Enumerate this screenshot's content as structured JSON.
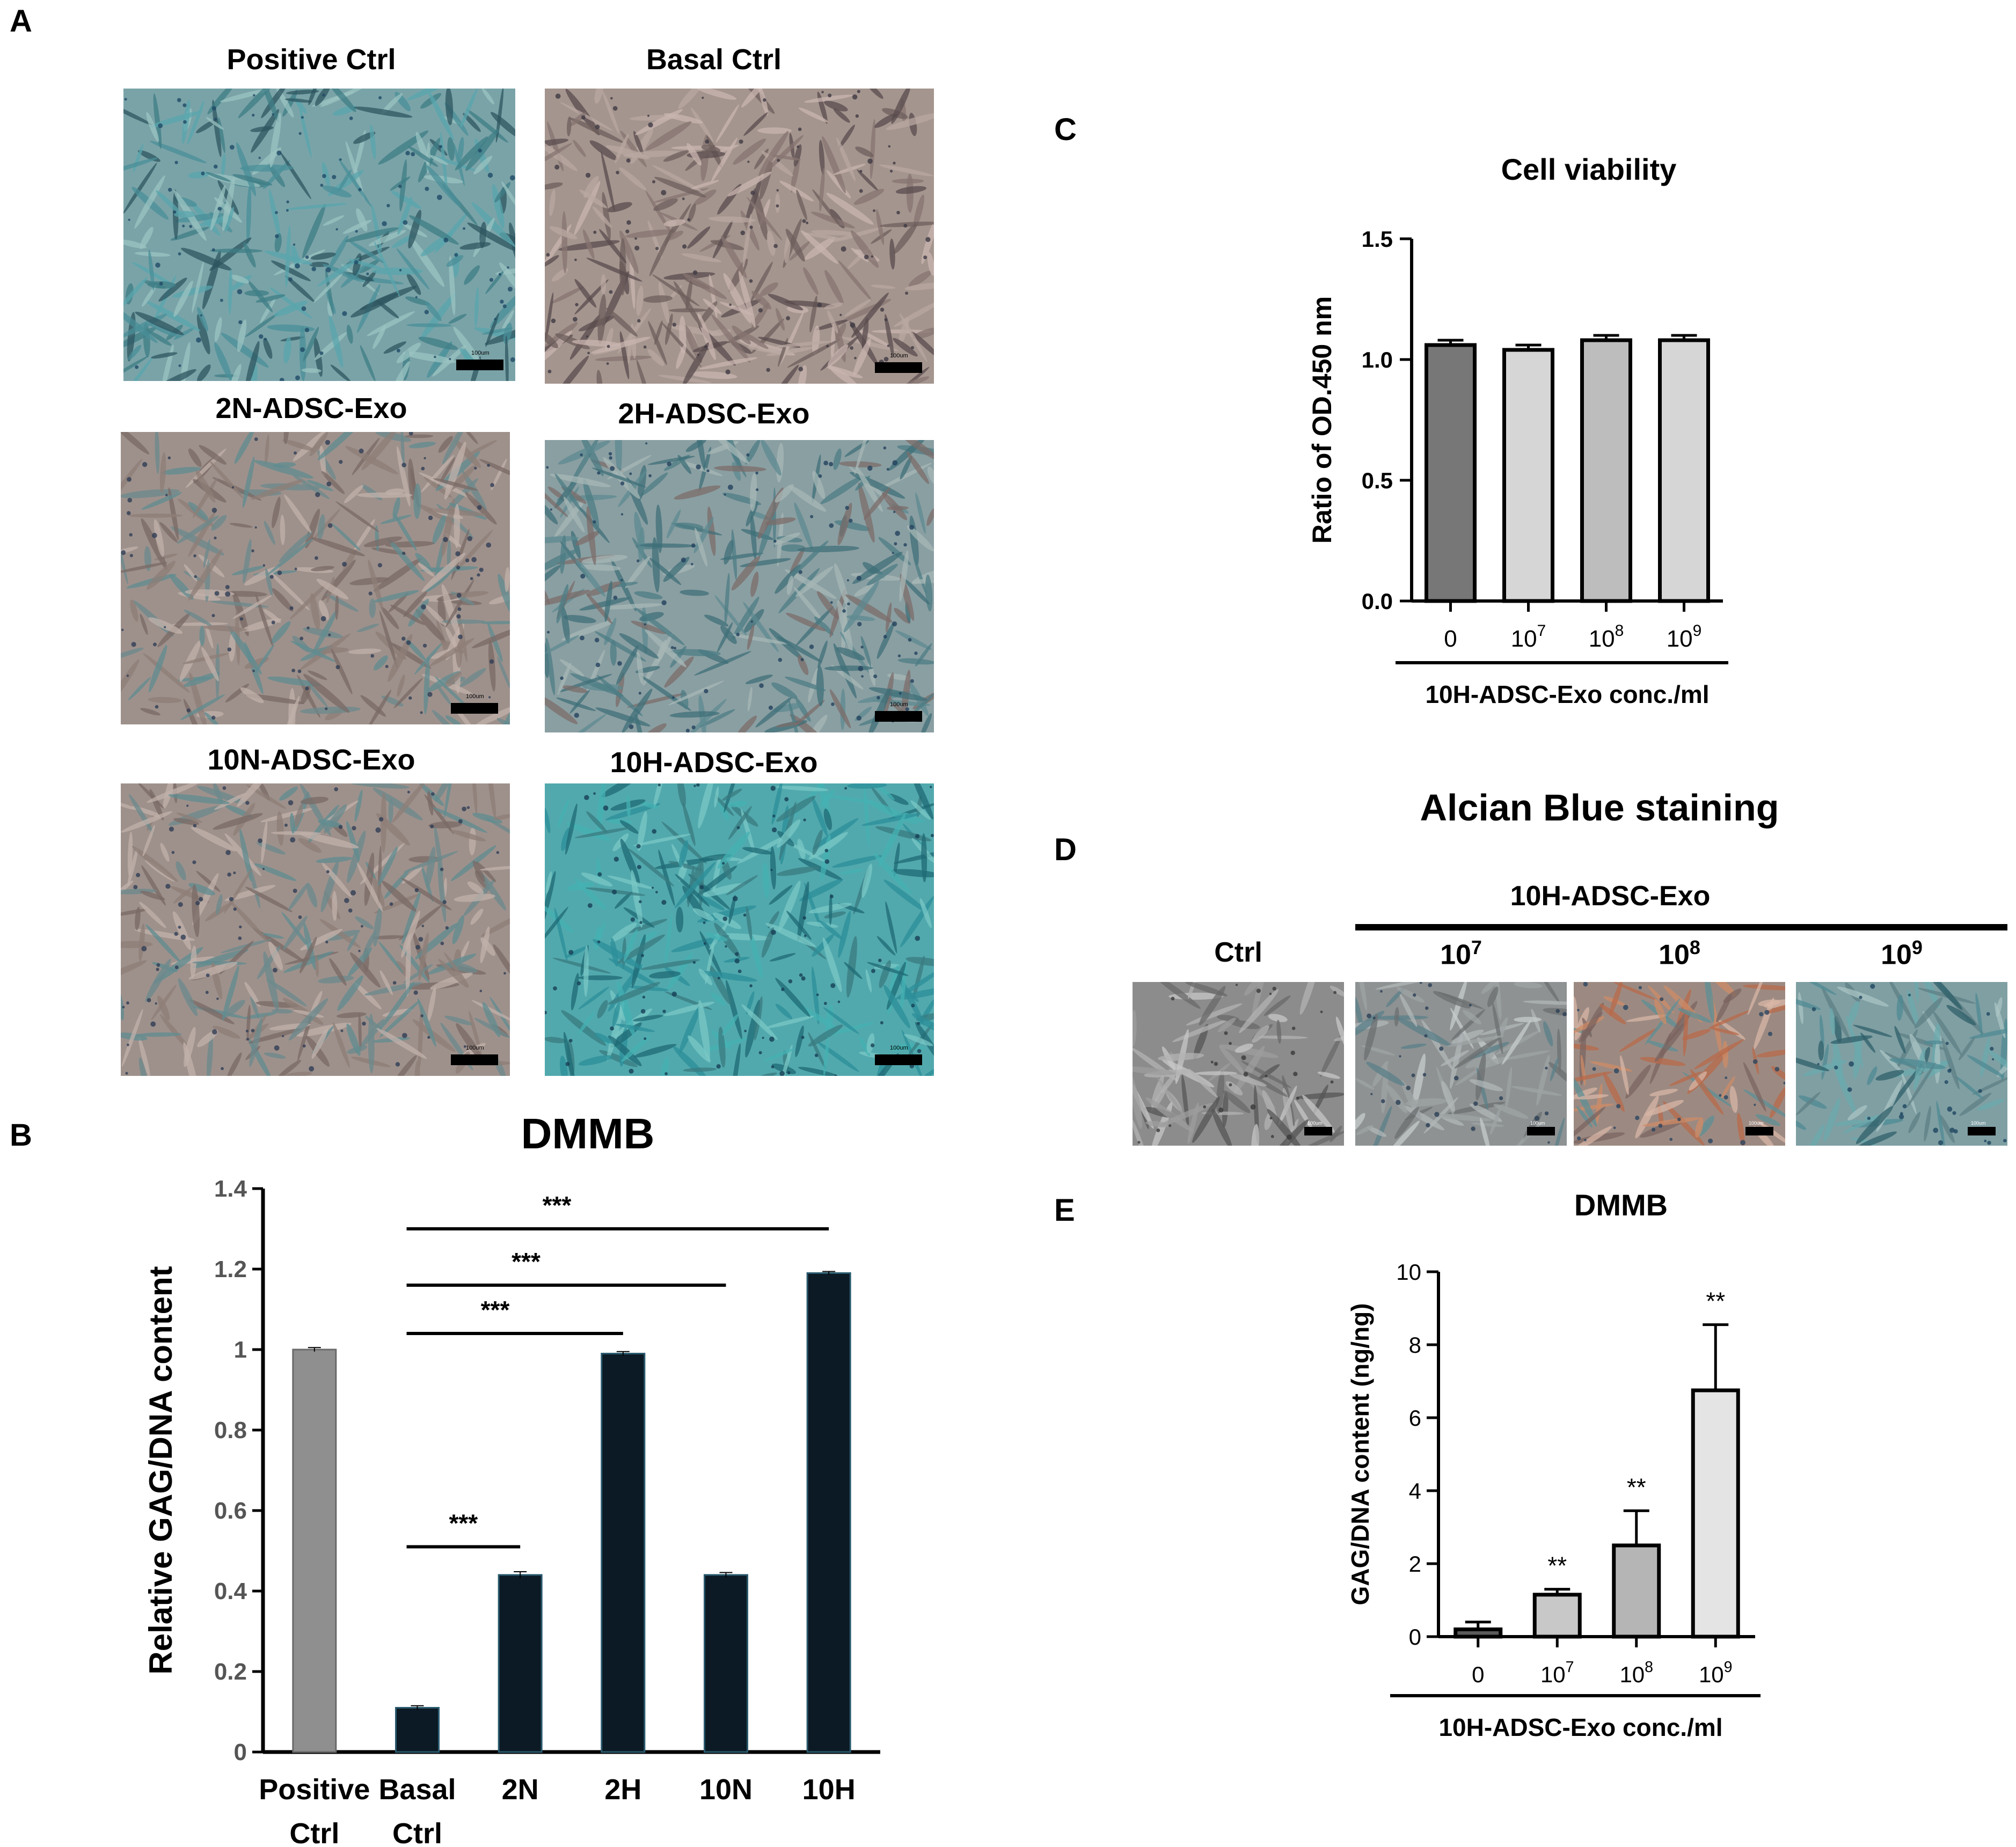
{
  "panel_letters": {
    "a": "A",
    "b": "B",
    "c": "C",
    "d": "D",
    "e": "E"
  },
  "panel_a": {
    "images": [
      {
        "title": "Positive Ctrl",
        "scale": "100um",
        "stain": "blue-strong"
      },
      {
        "title": "Basal Ctrl",
        "scale": "100um",
        "stain": "brown"
      },
      {
        "title": "2N-ADSC-Exo",
        "scale": "100um",
        "stain": "brown-mixed"
      },
      {
        "title": "2H-ADSC-Exo",
        "scale": "100um",
        "stain": "blue-mixed"
      },
      {
        "title": "10N-ADSC-Exo",
        "scale": "100um",
        "stain": "brown-mixed"
      },
      {
        "title": "10H-ADSC-Exo",
        "scale": "100um",
        "stain": "blue-very-strong"
      }
    ]
  },
  "panel_d": {
    "title": "Alcian Blue staining",
    "group_label": "10H-ADSC-Exo",
    "columns": [
      {
        "label": "Ctrl",
        "base": "",
        "exp": "",
        "scale": "100um",
        "stain": "gray"
      },
      {
        "label": "",
        "base": "10",
        "exp": "7",
        "scale": "100um",
        "stain": "gray-blue"
      },
      {
        "label": "",
        "base": "10",
        "exp": "8",
        "scale": "100um",
        "stain": "orange-blue"
      },
      {
        "label": "",
        "base": "10",
        "exp": "9",
        "scale": "100um",
        "stain": "blue"
      }
    ]
  },
  "chart_data": [
    {
      "id": "B",
      "type": "bar",
      "title": "DMMB",
      "ylabel": "Relative GAG/DNA content",
      "xlabel": "",
      "categories": [
        [
          "Positive",
          "Ctrl"
        ],
        [
          "Basal",
          "Ctrl"
        ],
        [
          "2N"
        ],
        [
          "2H"
        ],
        [
          "10N"
        ],
        [
          "10H"
        ]
      ],
      "values": [
        1.0,
        0.11,
        0.44,
        0.99,
        0.44,
        1.19
      ],
      "errors": [
        0.005,
        0.005,
        0.008,
        0.005,
        0.006,
        0.004
      ],
      "colors": [
        "#8f8f8f",
        "#0b1a24",
        "#0b1a24",
        "#0b1a24",
        "#0b1a24",
        "#0b1a24"
      ],
      "ylim": [
        0,
        1.4
      ],
      "yticks": [
        "0",
        "0.2",
        "0.4",
        "0.6",
        "0.8",
        "1",
        "1.2",
        "1.4"
      ],
      "significance": [
        {
          "from": 1,
          "to": 2,
          "label": "***"
        },
        {
          "from": 1,
          "to": 3,
          "label": "***"
        },
        {
          "from": 1,
          "to": 4,
          "label": "***"
        },
        {
          "from": 1,
          "to": 5,
          "label": "***"
        }
      ],
      "grid": false
    },
    {
      "id": "C",
      "type": "bar",
      "title": "Cell viability",
      "ylabel": "Ratio of OD.450 nm",
      "xlabel": "10H-ADSC-Exo conc./ml",
      "categories": [
        {
          "base": "0",
          "exp": ""
        },
        {
          "base": "10",
          "exp": "7"
        },
        {
          "base": "10",
          "exp": "8"
        },
        {
          "base": "10",
          "exp": "9"
        }
      ],
      "values": [
        1.06,
        1.04,
        1.08,
        1.08
      ],
      "errors": [
        0.02,
        0.02,
        0.02,
        0.02
      ],
      "colors": [
        "#777777",
        "#d6d6d6",
        "#bdbdbd",
        "#d6d6d6"
      ],
      "ylim": [
        0,
        1.5
      ],
      "yticks": [
        "0.0",
        "0.5",
        "1.0",
        "1.5"
      ],
      "grid": false
    },
    {
      "id": "E",
      "type": "bar",
      "title": "DMMB",
      "ylabel": "GAG/DNA content (ng/ng)",
      "xlabel": "10H-ADSC-Exo conc./ml",
      "categories": [
        {
          "base": "0",
          "exp": ""
        },
        {
          "base": "10",
          "exp": "7"
        },
        {
          "base": "10",
          "exp": "8"
        },
        {
          "base": "10",
          "exp": "9"
        }
      ],
      "values": [
        0.2,
        1.15,
        2.5,
        6.75
      ],
      "errors": [
        0.2,
        0.15,
        0.95,
        1.8
      ],
      "colors": [
        "#5a5a5a",
        "#c8c8c8",
        "#b5b5b5",
        "#e4e4e4"
      ],
      "significance_labels": [
        "",
        "**",
        "**",
        "**"
      ],
      "ylim": [
        0,
        10
      ],
      "yticks": [
        "0",
        "2",
        "4",
        "6",
        "8",
        "10"
      ],
      "grid": false
    }
  ]
}
